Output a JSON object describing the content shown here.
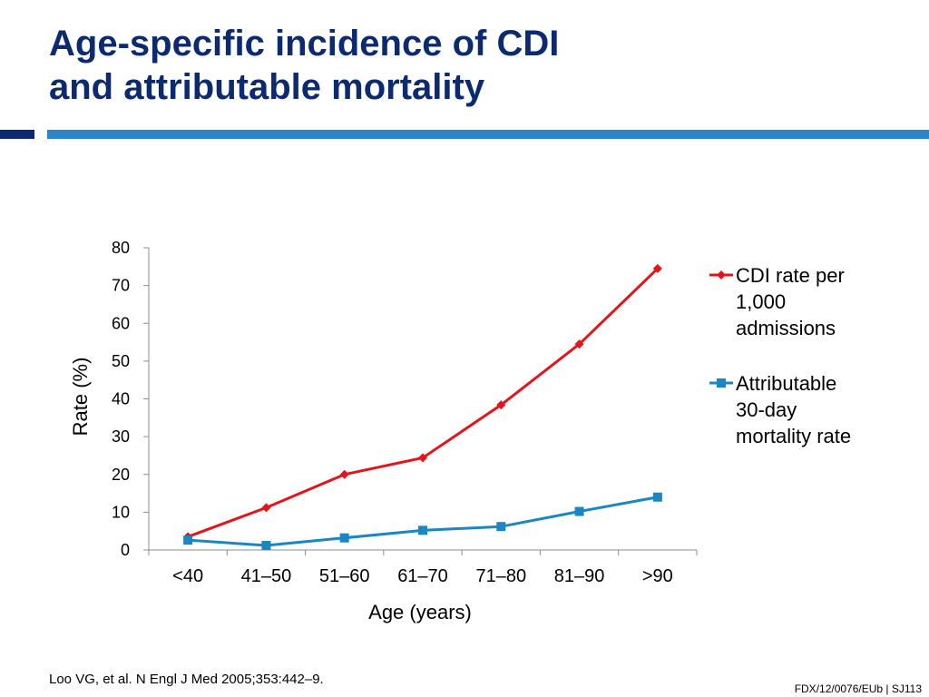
{
  "slide": {
    "title_line1": "Age-specific incidence of CDI",
    "title_line2": "and attributable mortality",
    "source": "Loo VG, et al. N Engl J Med 2005;353:442–9.",
    "reference_code": "FDX/12/0076/EUb | SJ113"
  },
  "colors": {
    "title": "#0b2a6f",
    "rule_dark": "#0b2a6f",
    "rule_light": "#2b86c8",
    "series_cdi": "#e3151b",
    "series_mortality": "#1a86c4"
  },
  "chart_data": {
    "type": "line",
    "title": "",
    "xlabel": "Age (years)",
    "ylabel": "Rate (%)",
    "ylim": [
      0,
      80
    ],
    "yticks": [
      0,
      10,
      20,
      30,
      40,
      50,
      60,
      70,
      80
    ],
    "categories": [
      "<40",
      "41–50",
      "51–60",
      "61–70",
      "71–80",
      "81–90",
      ">90"
    ],
    "grid": false,
    "legend_position": "right",
    "series": [
      {
        "name": "CDI rate per 1,000 admissions",
        "legend_lines": [
          "CDI rate per",
          "1,000",
          "admissions"
        ],
        "marker": "diamond",
        "color": "#e3151b",
        "values": [
          3.5,
          11.2,
          20.0,
          24.4,
          38.4,
          54.5,
          74.5
        ]
      },
      {
        "name": "Attributable 30-day mortality rate",
        "legend_lines": [
          "Attributable",
          "30-day",
          "mortality rate"
        ],
        "marker": "square",
        "color": "#1a86c4",
        "values": [
          2.6,
          1.2,
          3.2,
          5.2,
          6.2,
          10.2,
          14.0
        ]
      }
    ]
  }
}
